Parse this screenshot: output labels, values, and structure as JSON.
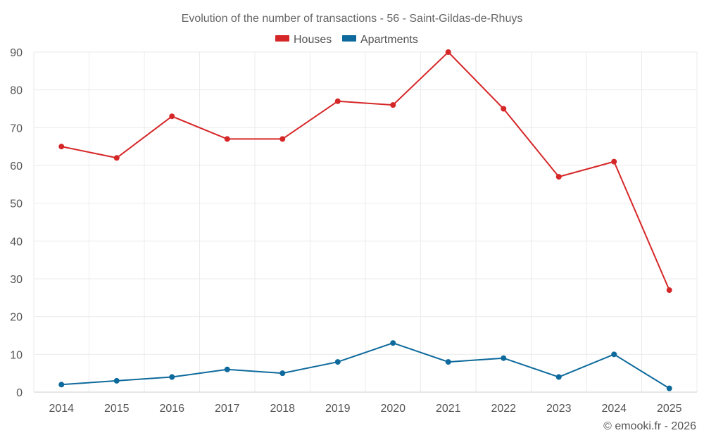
{
  "chart_data": {
    "type": "line",
    "title": "Evolution of the number of transactions - 56 - Saint-Gildas-de-Rhuys",
    "categories": [
      "2014",
      "2015",
      "2016",
      "2017",
      "2018",
      "2019",
      "2020",
      "2021",
      "2022",
      "2023",
      "2024",
      "2025"
    ],
    "series": [
      {
        "name": "Houses",
        "color": "#d62728",
        "values": [
          65,
          62,
          73,
          67,
          67,
          77,
          76,
          90,
          75,
          57,
          61,
          27
        ]
      },
      {
        "name": "Apartments",
        "color": "#0e6a9c",
        "values": [
          2,
          3,
          4,
          6,
          5,
          8,
          13,
          8,
          9,
          4,
          10,
          1
        ]
      }
    ],
    "y_ticks": [
      "0",
      "10",
      "20",
      "30",
      "40",
      "50",
      "60",
      "70",
      "80",
      "90"
    ],
    "ylim": [
      0,
      90
    ],
    "grid": true,
    "legend_position": "top-center",
    "xlabel": "",
    "ylabel": ""
  },
  "credit": "© emooki.fr - 2026"
}
